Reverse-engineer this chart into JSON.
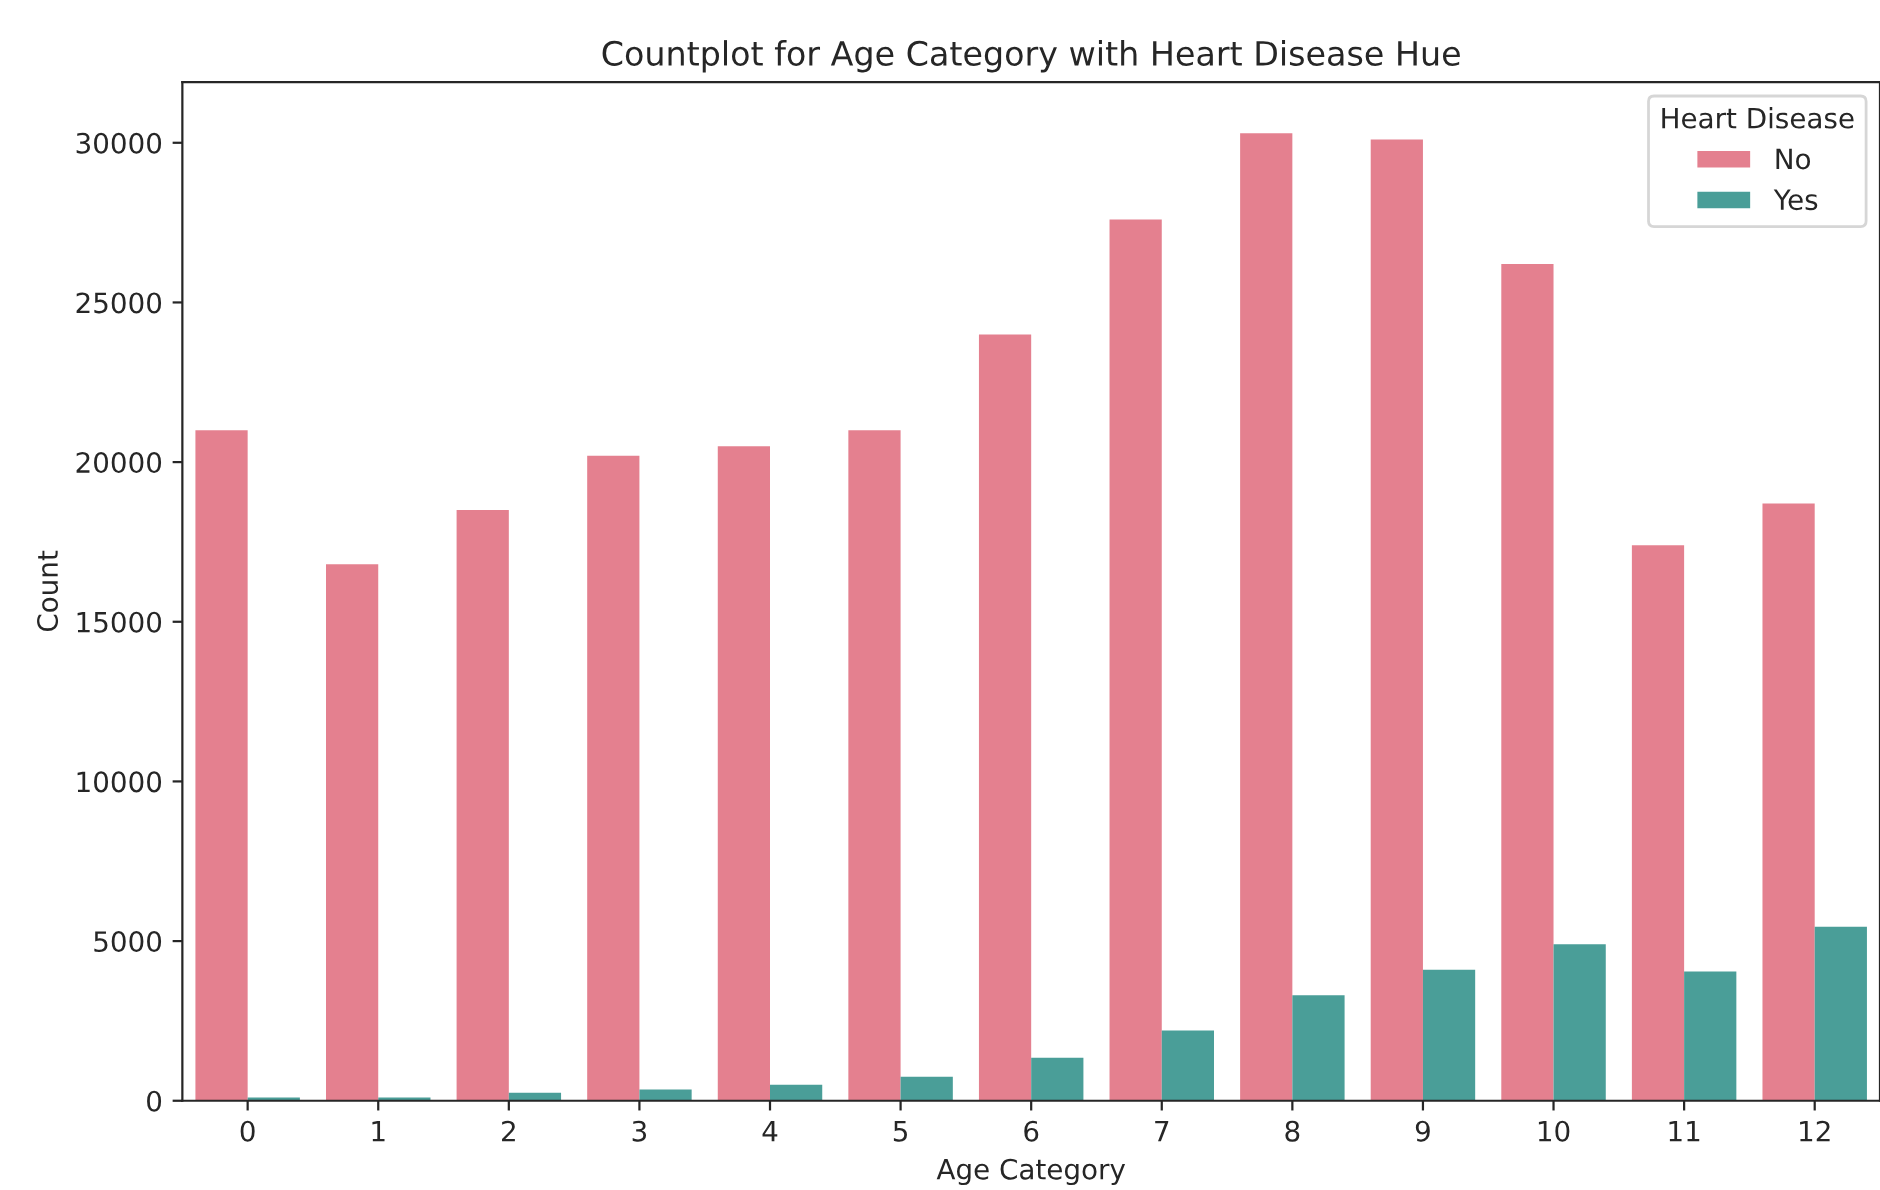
{
  "chart_data": {
    "type": "bar",
    "title": "Countplot for Age Category with Heart Disease Hue",
    "xlabel": "Age Category",
    "ylabel": "Count",
    "legend_title": "Heart Disease",
    "legend": "top right",
    "grid": false,
    "categories": [
      "0",
      "1",
      "2",
      "3",
      "4",
      "5",
      "6",
      "7",
      "8",
      "9",
      "10",
      "11",
      "12"
    ],
    "series": [
      {
        "name": "No",
        "color": "#e4808f",
        "values": [
          21000,
          16800,
          18500,
          20200,
          20500,
          21000,
          24000,
          27600,
          30300,
          30100,
          26200,
          17400,
          18700
        ]
      },
      {
        "name": "Yes",
        "color": "#4a9e98",
        "values": [
          100,
          100,
          250,
          350,
          500,
          750,
          1350,
          2200,
          3300,
          4100,
          4900,
          4050,
          5450
        ]
      }
    ],
    "ylim": [
      0,
      31900
    ],
    "yticks": [
      0,
      5000,
      10000,
      15000,
      20000,
      25000,
      30000
    ]
  }
}
